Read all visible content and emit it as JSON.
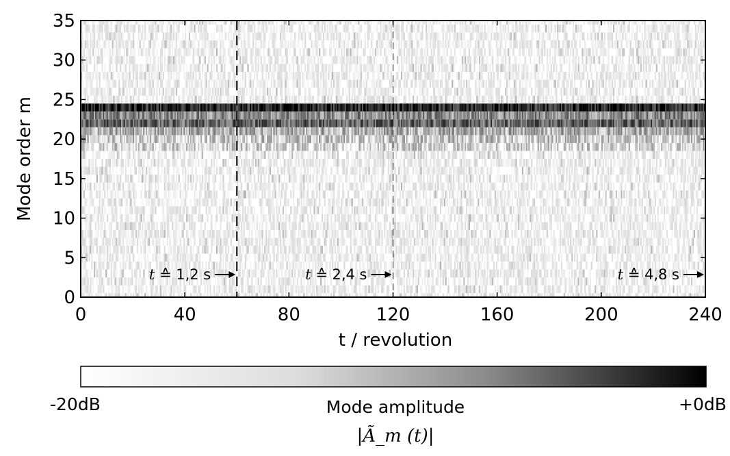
{
  "chart_data": {
    "type": "heatmap",
    "xlabel": "t / revolution",
    "ylabel": "Mode order m",
    "xlim": [
      0,
      240
    ],
    "ylim": [
      0,
      35
    ],
    "x_ticks": [
      "0",
      "40",
      "80",
      "120",
      "160",
      "200",
      "240"
    ],
    "y_ticks": [
      "0",
      "5",
      "10",
      "15",
      "20",
      "25",
      "30",
      "35"
    ],
    "grid": false,
    "markers": [
      {
        "x": 60,
        "label_t": "t",
        "label_eq": "≙",
        "label_value": "1,2 s",
        "style": "dashed-bold"
      },
      {
        "x": 120,
        "label_t": "t",
        "label_eq": "≙",
        "label_value": "2,4 s",
        "style": "dashed-thin"
      },
      {
        "x": 240,
        "label_t": "t",
        "label_eq": "≙",
        "label_value": "4,8 s",
        "style": "none"
      }
    ],
    "dominant_modes": [
      {
        "m": 24,
        "intensity_db": -3
      },
      {
        "m": 22,
        "intensity_db": -8
      },
      {
        "m": 23,
        "intensity_db": -11
      },
      {
        "m": 21,
        "intensity_db": -14
      },
      {
        "m": 20,
        "intensity_db": -16
      },
      {
        "m": 19,
        "intensity_db": -17
      }
    ],
    "background_db": -19,
    "colorbar": {
      "min_label": "-20dB",
      "max_label": "+0dB",
      "label": "Mode amplitude",
      "sublabel": "|Ã_m (t)|",
      "colors": [
        "#ffffff",
        "#000000"
      ]
    }
  }
}
